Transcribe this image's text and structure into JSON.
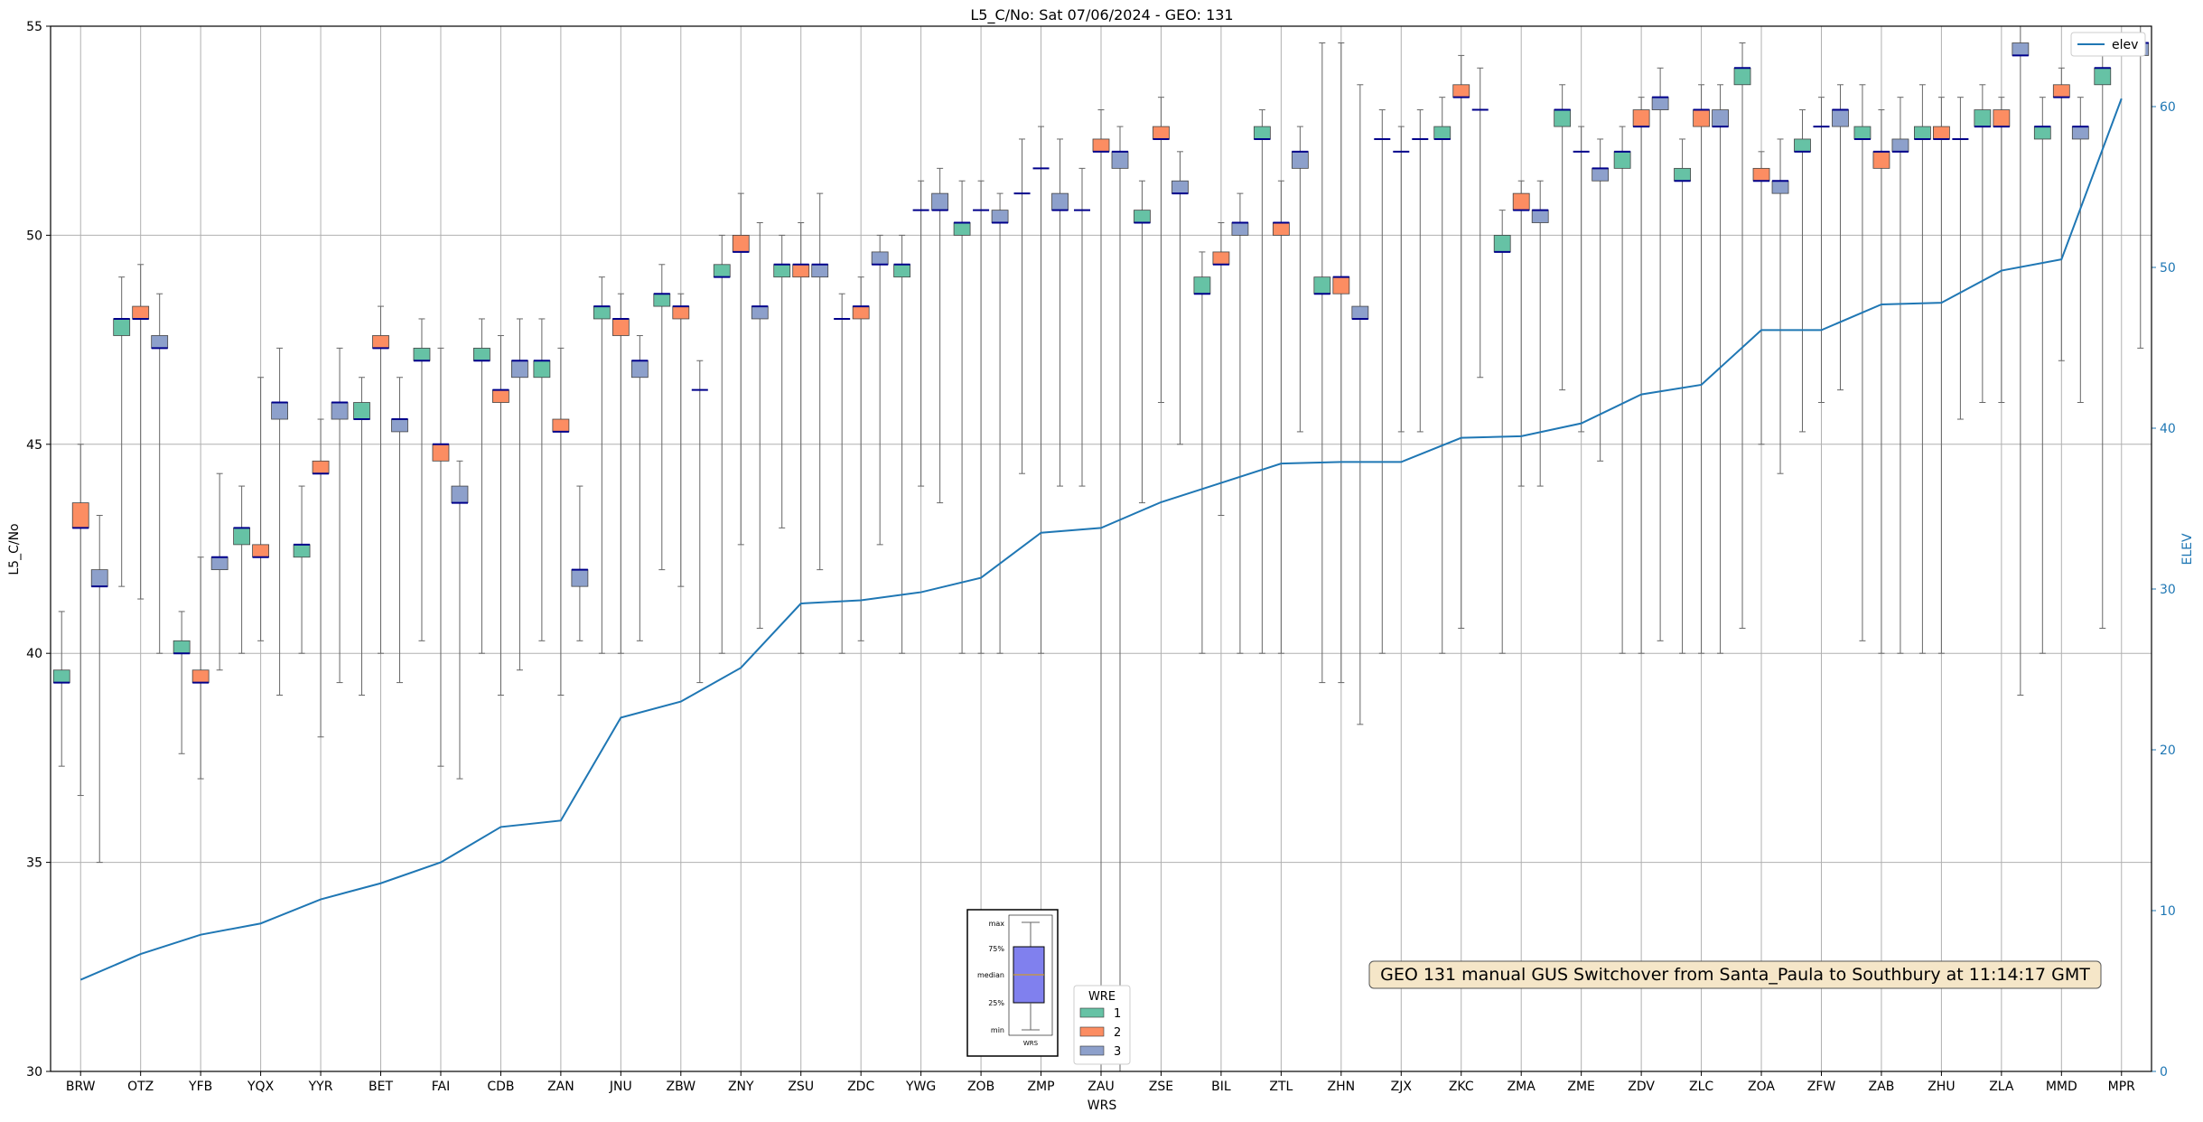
{
  "chart_data": {
    "type": "box",
    "title": "L5_C/No: Sat 07/06/2024 - GEO: 131",
    "xlabel": "WRS",
    "ylabel": "L5_C/No",
    "ylabel_right": "ELEV",
    "ylim": [
      30,
      55
    ],
    "ylim_right": [
      0,
      65
    ],
    "yticks": [
      30,
      35,
      40,
      45,
      50,
      55
    ],
    "yticks_right": [
      0,
      10,
      20,
      30,
      40,
      50,
      60
    ],
    "grid": true,
    "legend_title": "WRE",
    "legend_wre": [
      "1",
      "2",
      "3"
    ],
    "legend_line": "elev",
    "legend_line_placement": "top-right",
    "legend_wre_placement": "bottom-center",
    "annotation": "GEO 131 manual GUS Switchover from Santa_Paula to Southbury at 11:14:17 GMT",
    "inset_labels": [
      "max",
      "75%",
      "median",
      "25%",
      "min",
      "WRS"
    ],
    "colors": {
      "wre1": "#66c2a5",
      "wre2": "#fc8d62",
      "wre3": "#8da0cb",
      "elev": "#1f77b4",
      "median": "#00008b",
      "whisker": "#666666",
      "annotation_bg": "#f5e6c8"
    },
    "categories": [
      "BRW",
      "OTZ",
      "YFB",
      "YQX",
      "YYR",
      "BET",
      "FAI",
      "CDB",
      "ZAN",
      "JNU",
      "ZBW",
      "ZNY",
      "ZSU",
      "ZDC",
      "YWG",
      "ZOB",
      "ZMP",
      "ZAU",
      "ZSE",
      "BIL",
      "ZTL",
      "ZHN",
      "ZJX",
      "ZKC",
      "ZMA",
      "ZME",
      "ZDV",
      "ZLC",
      "ZOA",
      "ZFW",
      "ZAB",
      "ZHU",
      "ZLA",
      "MMD",
      "MPR"
    ],
    "elev": [
      5.7,
      7.3,
      8.5,
      9.2,
      10.7,
      11.7,
      13.0,
      15.2,
      15.6,
      22.0,
      23.0,
      25.1,
      29.1,
      29.3,
      29.8,
      30.7,
      33.5,
      33.8,
      35.4,
      36.6,
      37.8,
      37.9,
      37.9,
      39.4,
      39.5,
      40.3,
      42.1,
      42.7,
      46.1,
      46.1,
      47.7,
      47.8,
      49.8,
      50.5,
      60.5
    ],
    "boxes": [
      {
        "wrs": "BRW",
        "wre": 1,
        "q1": 39.3,
        "q3": 39.6,
        "median": 39.3,
        "min": 37.3,
        "max": 41.0
      },
      {
        "wrs": "BRW",
        "wre": 2,
        "q1": 43.0,
        "q3": 43.6,
        "median": 43.0,
        "min": 36.6,
        "max": 45.0
      },
      {
        "wrs": "BRW",
        "wre": 3,
        "q1": 41.6,
        "q3": 42.0,
        "median": 41.6,
        "min": 35.0,
        "max": 43.3
      },
      {
        "wrs": "OTZ",
        "wre": 1,
        "q1": 47.6,
        "q3": 48.0,
        "median": 48.0,
        "min": 41.6,
        "max": 49.0
      },
      {
        "wrs": "OTZ",
        "wre": 2,
        "q1": 48.0,
        "q3": 48.3,
        "median": 48.0,
        "min": 41.3,
        "max": 49.3
      },
      {
        "wrs": "OTZ",
        "wre": 3,
        "q1": 47.3,
        "q3": 47.6,
        "median": 47.3,
        "min": 40.0,
        "max": 48.6
      },
      {
        "wrs": "YFB",
        "wre": 1,
        "q1": 40.0,
        "q3": 40.3,
        "median": 40.0,
        "min": 37.6,
        "max": 41.0
      },
      {
        "wrs": "YFB",
        "wre": 2,
        "q1": 39.3,
        "q3": 39.6,
        "median": 39.3,
        "min": 37.0,
        "max": 42.3
      },
      {
        "wrs": "YFB",
        "wre": 3,
        "q1": 42.0,
        "q3": 42.3,
        "median": 42.3,
        "min": 39.6,
        "max": 44.3
      },
      {
        "wrs": "YQX",
        "wre": 1,
        "q1": 42.6,
        "q3": 43.0,
        "median": 43.0,
        "min": 40.0,
        "max": 44.0
      },
      {
        "wrs": "YQX",
        "wre": 2,
        "q1": 42.3,
        "q3": 42.6,
        "median": 42.3,
        "min": 40.3,
        "max": 46.6
      },
      {
        "wrs": "YQX",
        "wre": 3,
        "q1": 45.6,
        "q3": 46.0,
        "median": 46.0,
        "min": 39.0,
        "max": 47.3
      },
      {
        "wrs": "YYR",
        "wre": 1,
        "q1": 42.3,
        "q3": 42.6,
        "median": 42.6,
        "min": 40.0,
        "max": 44.0
      },
      {
        "wrs": "YYR",
        "wre": 2,
        "q1": 44.3,
        "q3": 44.6,
        "median": 44.3,
        "min": 38.0,
        "max": 45.6
      },
      {
        "wrs": "YYR",
        "wre": 3,
        "q1": 45.6,
        "q3": 46.0,
        "median": 46.0,
        "min": 39.3,
        "max": 47.3
      },
      {
        "wrs": "BET",
        "wre": 1,
        "q1": 45.6,
        "q3": 46.0,
        "median": 45.6,
        "min": 39.0,
        "max": 46.6
      },
      {
        "wrs": "BET",
        "wre": 2,
        "q1": 47.3,
        "q3": 47.6,
        "median": 47.3,
        "min": 40.0,
        "max": 48.3
      },
      {
        "wrs": "BET",
        "wre": 3,
        "q1": 45.3,
        "q3": 45.6,
        "median": 45.6,
        "min": 39.3,
        "max": 46.6
      },
      {
        "wrs": "FAI",
        "wre": 1,
        "q1": 47.0,
        "q3": 47.3,
        "median": 47.0,
        "min": 40.3,
        "max": 48.0
      },
      {
        "wrs": "FAI",
        "wre": 2,
        "q1": 44.6,
        "q3": 45.0,
        "median": 45.0,
        "min": 37.3,
        "max": 47.3
      },
      {
        "wrs": "FAI",
        "wre": 3,
        "q1": 43.6,
        "q3": 44.0,
        "median": 43.6,
        "min": 37.0,
        "max": 44.6
      },
      {
        "wrs": "CDB",
        "wre": 1,
        "q1": 47.0,
        "q3": 47.3,
        "median": 47.0,
        "min": 40.0,
        "max": 48.0
      },
      {
        "wrs": "CDB",
        "wre": 2,
        "q1": 46.0,
        "q3": 46.3,
        "median": 46.3,
        "min": 39.0,
        "max": 47.6
      },
      {
        "wrs": "CDB",
        "wre": 3,
        "q1": 46.6,
        "q3": 47.0,
        "median": 47.0,
        "min": 39.6,
        "max": 48.0
      },
      {
        "wrs": "ZAN",
        "wre": 1,
        "q1": 46.6,
        "q3": 47.0,
        "median": 47.0,
        "min": 40.3,
        "max": 48.0
      },
      {
        "wrs": "ZAN",
        "wre": 2,
        "q1": 45.3,
        "q3": 45.6,
        "median": 45.3,
        "min": 39.0,
        "max": 47.3
      },
      {
        "wrs": "ZAN",
        "wre": 3,
        "q1": 41.6,
        "q3": 42.0,
        "median": 42.0,
        "min": 40.3,
        "max": 44.0
      },
      {
        "wrs": "JNU",
        "wre": 1,
        "q1": 48.0,
        "q3": 48.3,
        "median": 48.3,
        "min": 40.0,
        "max": 49.0
      },
      {
        "wrs": "JNU",
        "wre": 2,
        "q1": 47.6,
        "q3": 48.0,
        "median": 48.0,
        "min": 40.0,
        "max": 48.6
      },
      {
        "wrs": "JNU",
        "wre": 3,
        "q1": 46.6,
        "q3": 47.0,
        "median": 47.0,
        "min": 40.3,
        "max": 47.6
      },
      {
        "wrs": "ZBW",
        "wre": 1,
        "q1": 48.3,
        "q3": 48.6,
        "median": 48.6,
        "min": 42.0,
        "max": 49.3
      },
      {
        "wrs": "ZBW",
        "wre": 2,
        "q1": 48.0,
        "q3": 48.3,
        "median": 48.3,
        "min": 41.6,
        "max": 48.6
      },
      {
        "wrs": "ZBW",
        "wre": 3,
        "q1": 46.3,
        "q3": 46.3,
        "median": 46.3,
        "min": 39.3,
        "max": 47.0
      },
      {
        "wrs": "ZNY",
        "wre": 1,
        "q1": 49.0,
        "q3": 49.3,
        "median": 49.0,
        "min": 40.0,
        "max": 50.0
      },
      {
        "wrs": "ZNY",
        "wre": 2,
        "q1": 49.6,
        "q3": 50.0,
        "median": 49.6,
        "min": 42.6,
        "max": 51.0
      },
      {
        "wrs": "ZNY",
        "wre": 3,
        "q1": 48.0,
        "q3": 48.3,
        "median": 48.3,
        "min": 40.6,
        "max": 50.3
      },
      {
        "wrs": "ZSU",
        "wre": 1,
        "q1": 49.0,
        "q3": 49.3,
        "median": 49.3,
        "min": 43.0,
        "max": 50.0
      },
      {
        "wrs": "ZSU",
        "wre": 2,
        "q1": 49.0,
        "q3": 49.3,
        "median": 49.3,
        "min": 40.0,
        "max": 50.3
      },
      {
        "wrs": "ZSU",
        "wre": 3,
        "q1": 49.0,
        "q3": 49.3,
        "median": 49.3,
        "min": 42.0,
        "max": 51.0
      },
      {
        "wrs": "ZDC",
        "wre": 1,
        "q1": 48.0,
        "q3": 48.0,
        "median": 48.0,
        "min": 40.0,
        "max": 48.6
      },
      {
        "wrs": "ZDC",
        "wre": 2,
        "q1": 48.0,
        "q3": 48.3,
        "median": 48.3,
        "min": 40.3,
        "max": 49.0
      },
      {
        "wrs": "ZDC",
        "wre": 3,
        "q1": 49.3,
        "q3": 49.6,
        "median": 49.3,
        "min": 42.6,
        "max": 50.0
      },
      {
        "wrs": "YWG",
        "wre": 1,
        "q1": 49.0,
        "q3": 49.3,
        "median": 49.3,
        "min": 40.0,
        "max": 50.0
      },
      {
        "wrs": "YWG",
        "wre": 2,
        "q1": 50.6,
        "q3": 50.6,
        "median": 50.6,
        "min": 44.0,
        "max": 51.3
      },
      {
        "wrs": "YWG",
        "wre": 3,
        "q1": 50.6,
        "q3": 51.0,
        "median": 50.6,
        "min": 43.6,
        "max": 51.6
      },
      {
        "wrs": "ZOB",
        "wre": 1,
        "q1": 50.0,
        "q3": 50.3,
        "median": 50.3,
        "min": 40.0,
        "max": 51.3
      },
      {
        "wrs": "ZOB",
        "wre": 2,
        "q1": 50.6,
        "q3": 50.6,
        "median": 50.6,
        "min": 40.0,
        "max": 51.3
      },
      {
        "wrs": "ZOB",
        "wre": 3,
        "q1": 50.3,
        "q3": 50.6,
        "median": 50.3,
        "min": 40.0,
        "max": 51.0
      },
      {
        "wrs": "ZMP",
        "wre": 1,
        "q1": 51.0,
        "q3": 51.0,
        "median": 51.0,
        "min": 44.3,
        "max": 52.3
      },
      {
        "wrs": "ZMP",
        "wre": 2,
        "q1": 51.6,
        "q3": 51.6,
        "median": 51.6,
        "min": 40.0,
        "max": 52.6
      },
      {
        "wrs": "ZMP",
        "wre": 3,
        "q1": 50.6,
        "q3": 51.0,
        "median": 50.6,
        "min": 44.0,
        "max": 52.3
      },
      {
        "wrs": "ZAU",
        "wre": 1,
        "q1": 50.6,
        "q3": 50.6,
        "median": 50.6,
        "min": 44.0,
        "max": 51.6
      },
      {
        "wrs": "ZAU",
        "wre": 2,
        "q1": 52.0,
        "q3": 52.3,
        "median": 52.0,
        "min": 30.0,
        "max": 53.0
      },
      {
        "wrs": "ZAU",
        "wre": 3,
        "q1": 51.6,
        "q3": 52.0,
        "median": 52.0,
        "min": 30.0,
        "max": 52.6
      },
      {
        "wrs": "ZSE",
        "wre": 1,
        "q1": 50.3,
        "q3": 50.6,
        "median": 50.3,
        "min": 43.6,
        "max": 51.3
      },
      {
        "wrs": "ZSE",
        "wre": 2,
        "q1": 52.3,
        "q3": 52.6,
        "median": 52.3,
        "min": 46.0,
        "max": 53.3
      },
      {
        "wrs": "ZSE",
        "wre": 3,
        "q1": 51.0,
        "q3": 51.3,
        "median": 51.0,
        "min": 45.0,
        "max": 52.0
      },
      {
        "wrs": "BIL",
        "wre": 1,
        "q1": 48.6,
        "q3": 49.0,
        "median": 48.6,
        "min": 40.0,
        "max": 49.6
      },
      {
        "wrs": "BIL",
        "wre": 2,
        "q1": 49.3,
        "q3": 49.6,
        "median": 49.3,
        "min": 43.3,
        "max": 50.3
      },
      {
        "wrs": "BIL",
        "wre": 3,
        "q1": 50.0,
        "q3": 50.3,
        "median": 50.3,
        "min": 40.0,
        "max": 51.0
      },
      {
        "wrs": "ZTL",
        "wre": 1,
        "q1": 52.3,
        "q3": 52.6,
        "median": 52.3,
        "min": 40.0,
        "max": 53.0
      },
      {
        "wrs": "ZTL",
        "wre": 2,
        "q1": 50.0,
        "q3": 50.3,
        "median": 50.3,
        "min": 40.0,
        "max": 51.3
      },
      {
        "wrs": "ZTL",
        "wre": 3,
        "q1": 51.6,
        "q3": 52.0,
        "median": 52.0,
        "min": 45.3,
        "max": 52.6
      },
      {
        "wrs": "ZHN",
        "wre": 1,
        "q1": 48.6,
        "q3": 49.0,
        "median": 48.6,
        "min": 39.3,
        "max": 54.6
      },
      {
        "wrs": "ZHN",
        "wre": 2,
        "q1": 48.6,
        "q3": 49.0,
        "median": 49.0,
        "min": 39.3,
        "max": 54.6
      },
      {
        "wrs": "ZHN",
        "wre": 3,
        "q1": 48.0,
        "q3": 48.3,
        "median": 48.0,
        "min": 38.3,
        "max": 53.6
      },
      {
        "wrs": "ZJX",
        "wre": 1,
        "q1": 52.3,
        "q3": 52.3,
        "median": 52.3,
        "min": 40.0,
        "max": 53.0
      },
      {
        "wrs": "ZJX",
        "wre": 2,
        "q1": 52.0,
        "q3": 52.0,
        "median": 52.0,
        "min": 45.3,
        "max": 52.6
      },
      {
        "wrs": "ZJX",
        "wre": 3,
        "q1": 52.3,
        "q3": 52.3,
        "median": 52.3,
        "min": 45.3,
        "max": 53.0
      },
      {
        "wrs": "ZKC",
        "wre": 1,
        "q1": 52.3,
        "q3": 52.6,
        "median": 52.3,
        "min": 40.0,
        "max": 53.3
      },
      {
        "wrs": "ZKC",
        "wre": 2,
        "q1": 53.3,
        "q3": 53.6,
        "median": 53.3,
        "min": 40.6,
        "max": 54.3
      },
      {
        "wrs": "ZKC",
        "wre": 3,
        "q1": 53.0,
        "q3": 53.0,
        "median": 53.0,
        "min": 46.6,
        "max": 54.0
      },
      {
        "wrs": "ZMA",
        "wre": 1,
        "q1": 49.6,
        "q3": 50.0,
        "median": 49.6,
        "min": 40.0,
        "max": 50.6
      },
      {
        "wrs": "ZMA",
        "wre": 2,
        "q1": 50.6,
        "q3": 51.0,
        "median": 50.6,
        "min": 44.0,
        "max": 51.3
      },
      {
        "wrs": "ZMA",
        "wre": 3,
        "q1": 50.3,
        "q3": 50.6,
        "median": 50.6,
        "min": 44.0,
        "max": 51.3
      },
      {
        "wrs": "ZME",
        "wre": 1,
        "q1": 52.6,
        "q3": 53.0,
        "median": 53.0,
        "min": 46.3,
        "max": 53.6
      },
      {
        "wrs": "ZME",
        "wre": 2,
        "q1": 52.0,
        "q3": 52.0,
        "median": 52.0,
        "min": 45.3,
        "max": 52.6
      },
      {
        "wrs": "ZME",
        "wre": 3,
        "q1": 51.3,
        "q3": 51.6,
        "median": 51.6,
        "min": 44.6,
        "max": 52.3
      },
      {
        "wrs": "ZDV",
        "wre": 1,
        "q1": 51.6,
        "q3": 52.0,
        "median": 52.0,
        "min": 40.0,
        "max": 52.6
      },
      {
        "wrs": "ZDV",
        "wre": 2,
        "q1": 52.6,
        "q3": 53.0,
        "median": 52.6,
        "min": 40.0,
        "max": 53.3
      },
      {
        "wrs": "ZDV",
        "wre": 3,
        "q1": 53.0,
        "q3": 53.3,
        "median": 53.3,
        "min": 40.3,
        "max": 54.0
      },
      {
        "wrs": "ZLC",
        "wre": 1,
        "q1": 51.3,
        "q3": 51.6,
        "median": 51.3,
        "min": 40.0,
        "max": 52.3
      },
      {
        "wrs": "ZLC",
        "wre": 2,
        "q1": 52.6,
        "q3": 53.0,
        "median": 53.0,
        "min": 40.0,
        "max": 53.6
      },
      {
        "wrs": "ZLC",
        "wre": 3,
        "q1": 52.6,
        "q3": 53.0,
        "median": 52.6,
        "min": 40.0,
        "max": 53.6
      },
      {
        "wrs": "ZOA",
        "wre": 1,
        "q1": 53.6,
        "q3": 54.0,
        "median": 54.0,
        "min": 40.6,
        "max": 54.6
      },
      {
        "wrs": "ZOA",
        "wre": 2,
        "q1": 51.3,
        "q3": 51.6,
        "median": 51.3,
        "min": 45.0,
        "max": 52.0
      },
      {
        "wrs": "ZOA",
        "wre": 3,
        "q1": 51.0,
        "q3": 51.3,
        "median": 51.3,
        "min": 44.3,
        "max": 52.3
      },
      {
        "wrs": "ZFW",
        "wre": 1,
        "q1": 52.0,
        "q3": 52.3,
        "median": 52.0,
        "min": 45.3,
        "max": 53.0
      },
      {
        "wrs": "ZFW",
        "wre": 2,
        "q1": 52.6,
        "q3": 52.6,
        "median": 52.6,
        "min": 46.0,
        "max": 53.3
      },
      {
        "wrs": "ZFW",
        "wre": 3,
        "q1": 52.6,
        "q3": 53.0,
        "median": 53.0,
        "min": 46.3,
        "max": 53.6
      },
      {
        "wrs": "ZAB",
        "wre": 1,
        "q1": 52.3,
        "q3": 52.6,
        "median": 52.3,
        "min": 40.3,
        "max": 53.6
      },
      {
        "wrs": "ZAB",
        "wre": 2,
        "q1": 51.6,
        "q3": 52.0,
        "median": 52.0,
        "min": 40.0,
        "max": 53.0
      },
      {
        "wrs": "ZAB",
        "wre": 3,
        "q1": 52.0,
        "q3": 52.3,
        "median": 52.0,
        "min": 40.0,
        "max": 53.3
      },
      {
        "wrs": "ZHU",
        "wre": 1,
        "q1": 52.3,
        "q3": 52.6,
        "median": 52.3,
        "min": 40.0,
        "max": 53.6
      },
      {
        "wrs": "ZHU",
        "wre": 2,
        "q1": 52.3,
        "q3": 52.6,
        "median": 52.3,
        "min": 40.0,
        "max": 53.3
      },
      {
        "wrs": "ZHU",
        "wre": 3,
        "q1": 52.3,
        "q3": 52.3,
        "median": 52.3,
        "min": 45.6,
        "max": 53.3
      },
      {
        "wrs": "ZLA",
        "wre": 1,
        "q1": 52.6,
        "q3": 53.0,
        "median": 52.6,
        "min": 46.0,
        "max": 53.6
      },
      {
        "wrs": "ZLA",
        "wre": 2,
        "q1": 52.6,
        "q3": 53.0,
        "median": 52.6,
        "min": 46.0,
        "max": 53.3
      },
      {
        "wrs": "ZLA",
        "wre": 3,
        "q1": 54.3,
        "q3": 54.6,
        "median": 54.3,
        "min": 39.0,
        "max": 55.0
      },
      {
        "wrs": "MMD",
        "wre": 1,
        "q1": 52.3,
        "q3": 52.6,
        "median": 52.6,
        "min": 40.0,
        "max": 53.3
      },
      {
        "wrs": "MMD",
        "wre": 2,
        "q1": 53.3,
        "q3": 53.6,
        "median": 53.3,
        "min": 47.0,
        "max": 54.0
      },
      {
        "wrs": "MMD",
        "wre": 3,
        "q1": 52.3,
        "q3": 52.6,
        "median": 52.6,
        "min": 46.0,
        "max": 53.3
      },
      {
        "wrs": "MPR",
        "wre": 1,
        "q1": 53.6,
        "q3": 54.0,
        "median": 54.0,
        "min": 40.6,
        "max": 54.6
      },
      {
        "wrs": "MPR",
        "wre": 3,
        "q1": 54.3,
        "q3": 54.6,
        "median": 54.6,
        "min": 47.3,
        "max": 55.0
      }
    ]
  }
}
